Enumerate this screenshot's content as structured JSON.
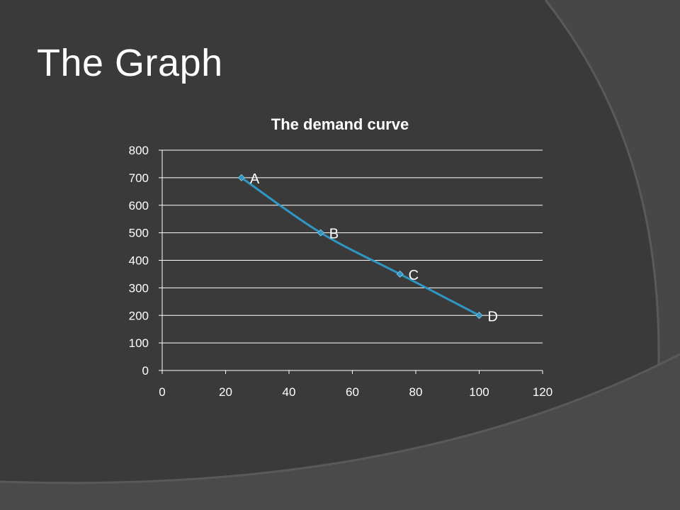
{
  "slide": {
    "title": "The Graph"
  },
  "colors": {
    "background": "#3a3a3a",
    "panel": "#444444",
    "grid": "#ffffff",
    "text": "#ffffff",
    "series": "#2f97c4"
  },
  "chart_data": {
    "type": "scatter",
    "title": "The demand curve",
    "xlabel": "",
    "ylabel": "",
    "xlim": [
      0,
      120
    ],
    "ylim": [
      0,
      800
    ],
    "x_ticks": [
      0,
      20,
      40,
      60,
      80,
      100,
      120
    ],
    "y_ticks": [
      0,
      100,
      200,
      300,
      400,
      500,
      600,
      700,
      800
    ],
    "grid": true,
    "legend": "none",
    "smooth_lines": true,
    "series": [
      {
        "points": [
          {
            "x": 25,
            "y": 700,
            "label": "A"
          },
          {
            "x": 50,
            "y": 500,
            "label": "B"
          },
          {
            "x": 75,
            "y": 350,
            "label": "C"
          },
          {
            "x": 100,
            "y": 200,
            "label": "D"
          }
        ]
      }
    ]
  }
}
